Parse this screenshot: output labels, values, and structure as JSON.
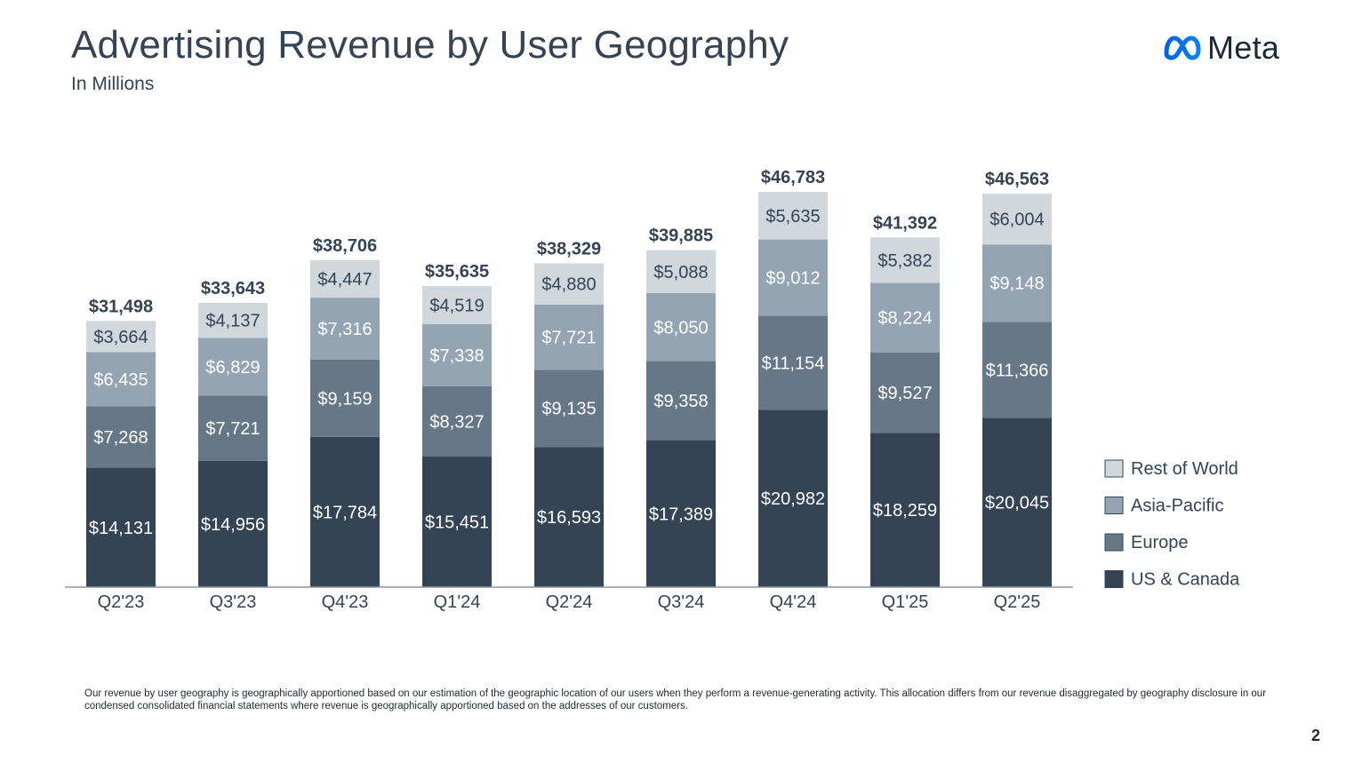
{
  "header": {
    "title": "Advertising Revenue by User Geography",
    "subtitle": "In Millions",
    "logo_text": "Meta"
  },
  "footnote": "Our revenue by user geography is geographically apportioned based on our estimation of the geographic location of our users when they perform a revenue-generating activity. This allocation differs from our revenue disaggregated by geography disclosure in our condensed consolidated financial statements where revenue is geographically apportioned based on the addresses of our customers.",
  "page_number": "2",
  "chart_data": {
    "type": "bar",
    "stacked": true,
    "title": "Advertising Revenue by User Geography",
    "subtitle": "In Millions",
    "categories": [
      "Q2'23",
      "Q3'23",
      "Q4'23",
      "Q1'24",
      "Q2'24",
      "Q3'24",
      "Q4'24",
      "Q1'25",
      "Q2'25"
    ],
    "series": [
      {
        "name": "US & Canada",
        "color": "#344454",
        "label_color": "#ffffff",
        "values": [
          14131,
          14956,
          17784,
          15451,
          16593,
          17389,
          20982,
          18259,
          20045
        ],
        "labels": [
          "$14,131",
          "$14,956",
          "$17,784",
          "$15,451",
          "$16,593",
          "$17,389",
          "$20,982",
          "$18,259",
          "$20,045"
        ]
      },
      {
        "name": "Europe",
        "color": "#667788",
        "label_color": "#ffffff",
        "values": [
          7268,
          7721,
          9159,
          8327,
          9135,
          9358,
          11154,
          9527,
          11366
        ],
        "labels": [
          "$7,268",
          "$7,721",
          "$9,159",
          "$8,327",
          "$9,135",
          "$9,358",
          "$11,154",
          "$9,527",
          "$11,366"
        ]
      },
      {
        "name": "Asia-Pacific",
        "color": "#94a4b2",
        "label_color": "#ffffff",
        "values": [
          6435,
          6829,
          7316,
          7338,
          7721,
          8050,
          9012,
          8224,
          9148
        ],
        "labels": [
          "$6,435",
          "$6,829",
          "$7,316",
          "$7,338",
          "$7,721",
          "$8,050",
          "$9,012",
          "$8,224",
          "$9,148"
        ]
      },
      {
        "name": "Rest of World",
        "color": "#d0d7dd",
        "label_color": "#344454",
        "values": [
          3664,
          4137,
          4447,
          4519,
          4880,
          5088,
          5635,
          5382,
          6004
        ],
        "labels": [
          "$3,664",
          "$4,137",
          "$4,447",
          "$4,519",
          "$4,880",
          "$5,088",
          "$5,635",
          "$5,382",
          "$6,004"
        ]
      }
    ],
    "totals": [
      31498,
      33643,
      38706,
      35635,
      38329,
      39885,
      46783,
      41392,
      46563
    ],
    "total_labels": [
      "$31,498",
      "$33,643",
      "$38,706",
      "$35,635",
      "$38,329",
      "$39,885",
      "$46,783",
      "$41,392",
      "$46,563"
    ],
    "legend_order": [
      "Rest of World",
      "Asia-Pacific",
      "Europe",
      "US & Canada"
    ],
    "legend_position": "right",
    "ylim": [
      0,
      46783
    ],
    "grid": false
  }
}
